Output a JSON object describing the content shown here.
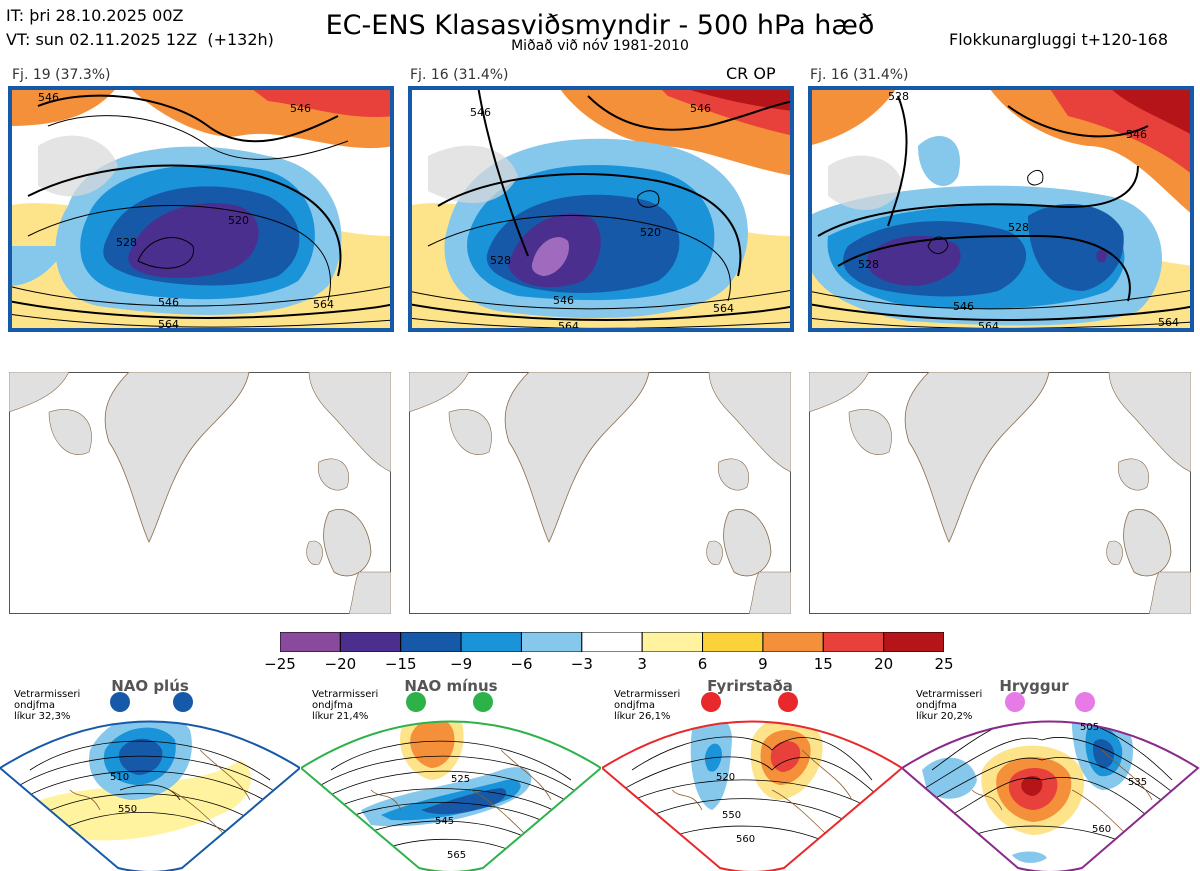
{
  "header": {
    "it_line": "IT: þri 28.10.2025 00Z",
    "vt_line": "VT: sun 02.11.2025 12Z  (+132h)",
    "title": "EC-ENS Klasasviðsmyndir - 500 hPa hæð",
    "subtitle": "Miðað við nóv 1981-2010",
    "window": "Flokkunargluggi t+120-168"
  },
  "panels": [
    {
      "label": "Fj. 19 (37.3%)",
      "extra": "",
      "contours": [
        "546",
        "528",
        "546",
        "520",
        "546",
        "564",
        "564"
      ]
    },
    {
      "label": "Fj. 16 (31.4%)",
      "extra": "CR OP",
      "contours": [
        "546",
        "528",
        "546",
        "520",
        "546",
        "564",
        "564"
      ]
    },
    {
      "label": "Fj. 16 (31.4%)",
      "extra": "",
      "contours": [
        "528",
        "546",
        "528",
        "528",
        "546",
        "564",
        "564"
      ]
    }
  ],
  "colorbar": {
    "ticks": [
      "−25",
      "−20",
      "−15",
      "−9",
      "−6",
      "−3",
      "3",
      "6",
      "9",
      "15",
      "20",
      "25"
    ],
    "colors": [
      "#8a4a9c",
      "#4b2f8f",
      "#1659a8",
      "#1b93d8",
      "#86c7ec",
      "#ffffff",
      "#fff3a0",
      "#fcd23a",
      "#f5903a",
      "#e8403a",
      "#b51418"
    ]
  },
  "regimes": [
    {
      "name": "NAO plús",
      "note": "Vetrarmisseri\nondjfma\nlíkur 32,3%",
      "color": "#1659a8",
      "contours": [
        "510",
        "550"
      ]
    },
    {
      "name": "NAO mínus",
      "note": "Vetrarmisseri\nondjfma\nlíkur 21,4%",
      "color": "#2db24a",
      "contours": [
        "525",
        "545",
        "565"
      ]
    },
    {
      "name": "Fyrirstaða",
      "note": "Vetrarmisseri\nondjfma\nlíkur 26,1%",
      "color": "#e8282a",
      "contours": [
        "520",
        "550",
        "560"
      ]
    },
    {
      "name": "Hryggur",
      "note": "Vetrarmisseri\nondjfma\nlíkur 20,2%",
      "color": "#e67ae6",
      "contours": [
        "505",
        "535",
        "560"
      ]
    }
  ]
}
